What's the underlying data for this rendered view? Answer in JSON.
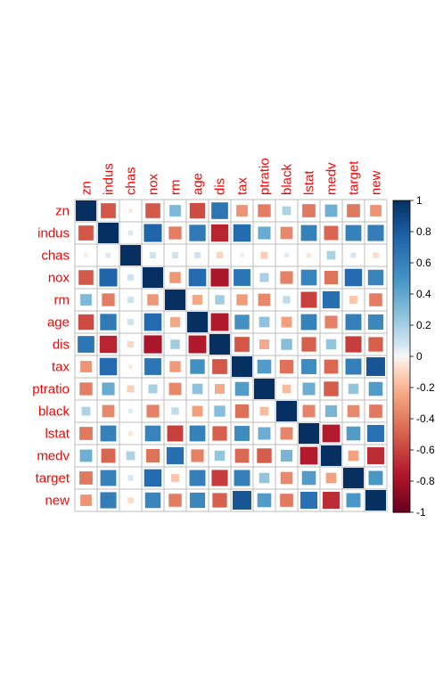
{
  "chart_data": {
    "type": "heatmap",
    "title": "",
    "variables": [
      "zn",
      "indus",
      "chas",
      "nox",
      "rm",
      "age",
      "dis",
      "tax",
      "ptratio",
      "black",
      "lstat",
      "medv",
      "target",
      "new"
    ],
    "matrix": [
      [
        1.0,
        -0.53,
        -0.04,
        -0.52,
        0.31,
        -0.57,
        0.66,
        -0.31,
        -0.39,
        0.18,
        -0.41,
        0.36,
        -0.41,
        -0.31
      ],
      [
        -0.53,
        1.0,
        0.06,
        0.76,
        -0.39,
        0.64,
        -0.71,
        0.72,
        0.38,
        -0.36,
        0.6,
        -0.48,
        0.6,
        0.62
      ],
      [
        -0.04,
        0.06,
        1.0,
        0.09,
        0.09,
        0.09,
        -0.1,
        -0.04,
        -0.12,
        0.05,
        -0.05,
        0.18,
        0.07,
        -0.08
      ],
      [
        -0.52,
        0.76,
        0.09,
        1.0,
        -0.3,
        0.73,
        -0.77,
        0.67,
        0.19,
        -0.38,
        0.59,
        -0.43,
        0.72,
        0.58
      ],
      [
        0.31,
        -0.39,
        0.09,
        -0.3,
        1.0,
        -0.24,
        0.21,
        -0.29,
        -0.36,
        0.13,
        -0.61,
        0.7,
        -0.15,
        -0.4
      ],
      [
        -0.57,
        0.64,
        0.09,
        0.73,
        -0.24,
        1.0,
        -0.75,
        0.51,
        0.26,
        -0.27,
        0.6,
        -0.38,
        0.61,
        0.56
      ],
      [
        0.66,
        -0.71,
        -0.1,
        -0.77,
        0.21,
        -0.75,
        1.0,
        -0.53,
        -0.23,
        0.29,
        -0.5,
        0.25,
        -0.62,
        -0.5
      ],
      [
        -0.31,
        0.72,
        -0.04,
        0.67,
        -0.29,
        0.51,
        -0.53,
        1.0,
        0.46,
        -0.44,
        0.54,
        -0.47,
        0.61,
        0.83
      ],
      [
        -0.39,
        0.38,
        -0.12,
        0.19,
        -0.36,
        0.26,
        -0.23,
        0.46,
        1.0,
        -0.18,
        0.37,
        -0.51,
        0.25,
        0.46
      ],
      [
        0.18,
        -0.36,
        0.05,
        -0.38,
        0.13,
        -0.27,
        0.29,
        -0.44,
        -0.18,
        1.0,
        -0.37,
        0.33,
        -0.35,
        -0.41
      ],
      [
        -0.41,
        0.6,
        -0.05,
        0.59,
        -0.61,
        0.6,
        -0.5,
        0.54,
        0.37,
        -0.37,
        1.0,
        -0.74,
        0.46,
        0.69
      ],
      [
        0.36,
        -0.48,
        0.18,
        -0.43,
        0.7,
        -0.38,
        0.25,
        -0.47,
        -0.51,
        0.33,
        -0.74,
        1.0,
        -0.26,
        -0.68
      ],
      [
        -0.41,
        0.6,
        0.07,
        0.72,
        -0.15,
        0.61,
        -0.62,
        0.61,
        0.25,
        -0.35,
        0.46,
        -0.26,
        1.0,
        0.48
      ],
      [
        -0.31,
        0.62,
        -0.08,
        0.58,
        -0.4,
        0.56,
        -0.5,
        0.83,
        0.46,
        -0.41,
        0.69,
        -0.68,
        0.48,
        1.0
      ]
    ],
    "colorbar": {
      "range": [
        -1,
        1
      ],
      "ticks": [
        "1",
        "0.8",
        "0.6",
        "0.4",
        "0.2",
        "0",
        "-0.2",
        "-0.4",
        "-0.6",
        "-0.8",
        "-1"
      ]
    },
    "colors": {
      "positive_strong": "#053061",
      "positive_mid": "#4393c3",
      "neutral": "#f7f7f7",
      "negative_mid": "#d6604d",
      "negative_strong": "#67001f",
      "label": "#ff0000",
      "grid": "#bebebe"
    },
    "legend_position": "right"
  }
}
